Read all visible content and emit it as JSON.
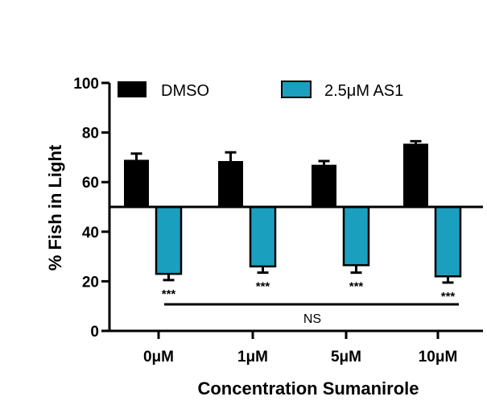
{
  "chart_data": {
    "type": "bar",
    "ylabel": "% Fish in Light",
    "xlabel": "Concentration Sumanirole",
    "categories": [
      "0μM",
      "1μM",
      "5μM",
      "10μM"
    ],
    "ylim": [
      0,
      100
    ],
    "yticks": [
      0,
      20,
      40,
      60,
      80,
      100
    ],
    "baseline": 50,
    "legend_position": "top",
    "series": [
      {
        "name": "DMSO",
        "color": "#000000",
        "values": [
          69,
          68.5,
          67,
          75.5
        ],
        "errors": [
          2.5,
          3.5,
          1.5,
          1
        ]
      },
      {
        "name": "2.5μM AS1",
        "color": "#1b9fbf",
        "values": [
          23,
          26,
          26.5,
          22
        ],
        "errors": [
          2.5,
          2.5,
          3,
          2.5
        ]
      }
    ],
    "significance_labels": [
      "***",
      "***",
      "***",
      "***"
    ],
    "comparison_label": "NS"
  }
}
